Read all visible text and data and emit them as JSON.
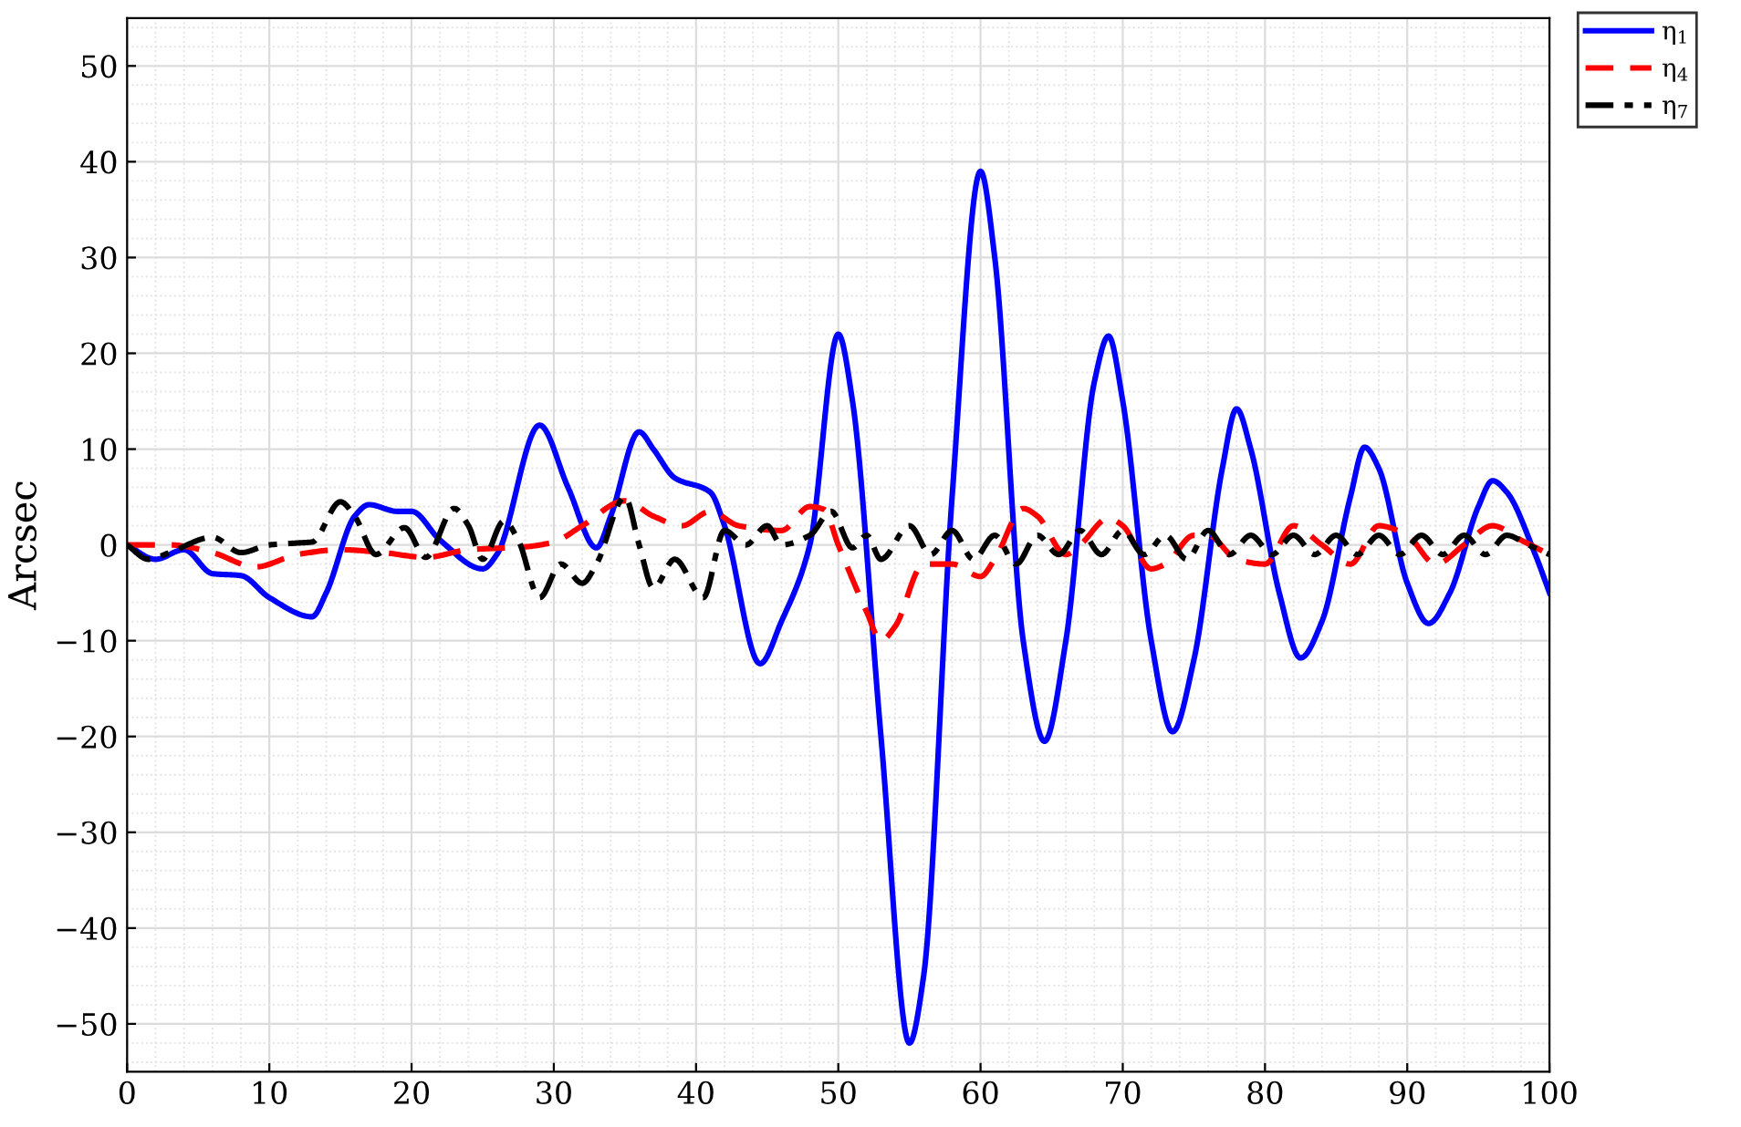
{
  "chart_data": {
    "type": "line",
    "ylabel": "Arcsec",
    "xlim": [
      0,
      100
    ],
    "ylim": [
      -55,
      55
    ],
    "xticks": [
      0,
      10,
      20,
      30,
      40,
      50,
      60,
      70,
      80,
      90,
      100
    ],
    "yticks": [
      {
        "value": -50,
        "label": "−50"
      },
      {
        "value": -40,
        "label": "−40"
      },
      {
        "value": -30,
        "label": "−30"
      },
      {
        "value": -20,
        "label": "−20"
      },
      {
        "value": -10,
        "label": "−10"
      },
      0,
      10,
      20,
      30,
      40,
      50
    ],
    "grid": true,
    "legend": "top right",
    "series": [
      {
        "name": "η$_{1}$",
        "color": "#0000ff",
        "line_style": "solid",
        "x": [
          0,
          2,
          4,
          6,
          8,
          10,
          13,
          14,
          16,
          17,
          19,
          20,
          22,
          25,
          26,
          29,
          31,
          33,
          34,
          36,
          37,
          38.5,
          41,
          42,
          44.5,
          46,
          48,
          50,
          51,
          53,
          55,
          56,
          58,
          60,
          61,
          63,
          64.5,
          66,
          68,
          69,
          70,
          72,
          73.5,
          75,
          77,
          78,
          79,
          81,
          82.5,
          84,
          86,
          87,
          88,
          90,
          91.5,
          93,
          95,
          96,
          97,
          99,
          100
        ],
        "values": [
          0,
          -1.5,
          -0.5,
          -3,
          -3.2,
          -5.5,
          -7.5,
          -5,
          3,
          4.2,
          3.5,
          3.5,
          0.5,
          -2.5,
          -1,
          12.5,
          6,
          -0.3,
          3,
          11.8,
          10,
          7,
          5.5,
          2,
          -12.4,
          -8,
          0,
          22,
          15,
          -20,
          -52,
          -45,
          5,
          39,
          30,
          -10,
          -20.5,
          -10,
          17,
          21.8,
          15,
          -10,
          -19.5,
          -12,
          8,
          14.2,
          10,
          -5,
          -11.8,
          -8,
          5,
          10.2,
          8,
          -4,
          -8.2,
          -5,
          4,
          6.7,
          5.5,
          -1,
          -5
        ]
      },
      {
        "name": "η$_{4}$",
        "color": "#ff0000",
        "line_style": "dashed",
        "x": [
          0,
          3,
          6,
          9,
          12,
          15,
          18,
          21,
          24,
          28,
          30,
          32,
          35,
          37,
          39,
          41,
          43,
          46,
          48,
          49,
          50,
          52,
          53,
          54,
          56,
          58,
          60,
          61,
          63,
          64,
          66,
          67,
          69,
          70,
          72,
          73,
          75,
          76,
          78,
          80,
          82,
          84,
          86,
          88,
          90,
          92,
          94,
          96,
          98,
          100
        ],
        "values": [
          0,
          0,
          -0.8,
          -2.3,
          -1,
          -0.5,
          -0.8,
          -1.3,
          -0.5,
          -0.2,
          0.3,
          2,
          4.6,
          3,
          2,
          3.5,
          2,
          1.5,
          4,
          3.7,
          0,
          -7,
          -10,
          -8.5,
          -2,
          -2,
          -3.3,
          -1.5,
          3.8,
          3,
          -1,
          0,
          2.8,
          2,
          -2.5,
          -2,
          1,
          1,
          -1.5,
          -2,
          2,
          0,
          -2,
          2,
          1,
          -2,
          0,
          2,
          0.5,
          -1
        ]
      },
      {
        "name": "η$_{7}$",
        "color": "#000000",
        "line_style": "dashdot",
        "x": [
          0,
          1.5,
          3,
          6,
          8,
          10,
          12,
          13,
          15,
          16,
          17.5,
          19.5,
          21,
          23,
          24,
          25,
          26.5,
          27.5,
          29,
          30.5,
          32,
          33,
          35,
          36,
          37,
          38.5,
          40.5,
          42,
          43.5,
          45,
          46,
          48,
          49.5,
          51,
          52,
          53,
          55,
          56.5,
          58,
          59.5,
          61,
          62.5,
          64,
          65.5,
          67,
          68.5,
          70,
          71.5,
          73,
          74.5,
          76,
          77.5,
          79,
          80.5,
          82,
          83.5,
          85,
          86.5,
          88,
          89.5,
          91,
          92.5,
          94,
          95.5,
          97,
          98.5,
          100
        ],
        "values": [
          0,
          -1.5,
          -0.8,
          0.8,
          -0.8,
          0,
          0.2,
          0.3,
          4.5,
          3,
          -1,
          1.8,
          -1.3,
          3.8,
          2,
          -1.5,
          2.5,
          0.5,
          -5.5,
          -2,
          -4,
          -2,
          5,
          0,
          -4.5,
          -1.5,
          -5.5,
          1.5,
          0,
          2,
          0,
          1,
          3.5,
          -0.3,
          1,
          -1.5,
          2,
          -1,
          1.5,
          -1.5,
          1,
          -2,
          1,
          -1,
          1.5,
          -1,
          1.5,
          -1,
          1,
          -1.5,
          1.5,
          -1,
          1,
          -1,
          1,
          -1,
          1,
          -1,
          1,
          -1,
          1,
          -1,
          1,
          -1,
          1,
          0,
          -1
        ]
      }
    ]
  }
}
